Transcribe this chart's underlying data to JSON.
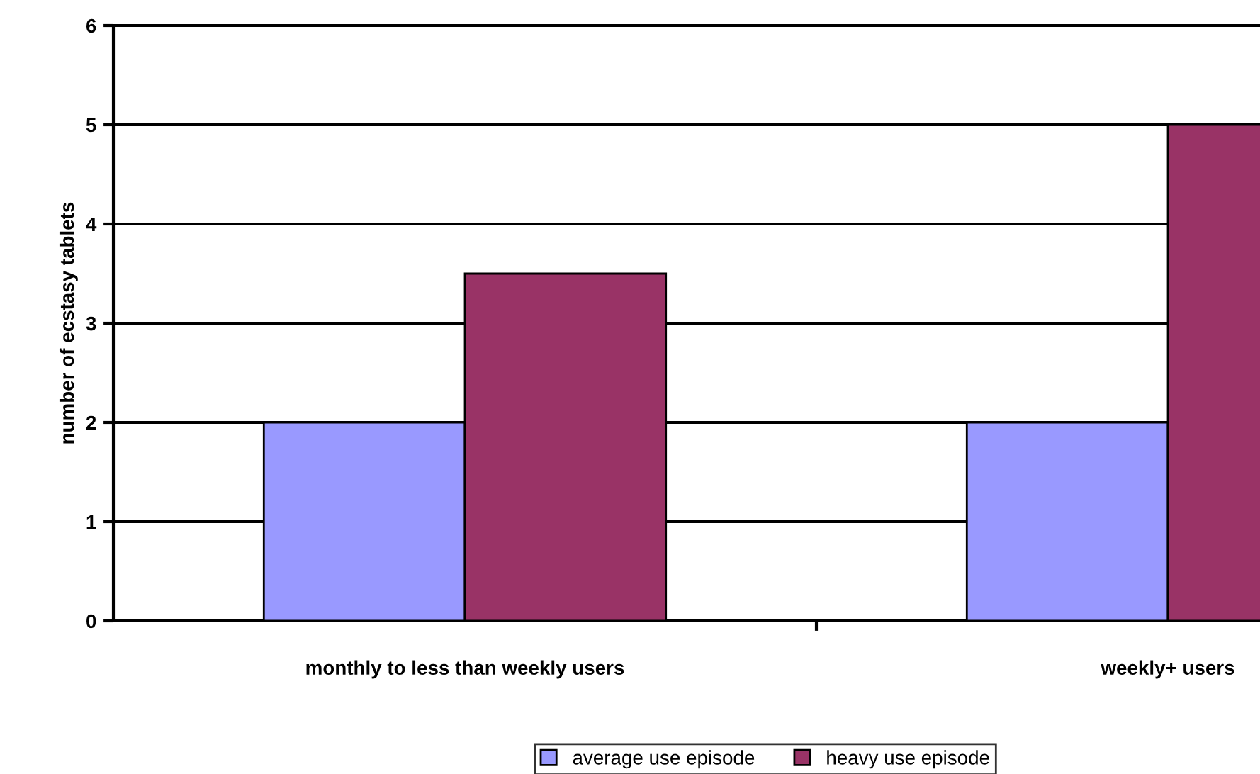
{
  "chart_data": {
    "type": "bar",
    "ylabel": "number of ecstasy tablets",
    "categories": [
      "monthly to less than weekly users",
      "weekly+ users"
    ],
    "series": [
      {
        "name": "average use episode",
        "color": "#9999ff",
        "values": [
          2,
          2
        ]
      },
      {
        "name": "heavy use episode",
        "color": "#993366",
        "values": [
          3.5,
          5
        ]
      }
    ],
    "ylim": [
      0,
      6
    ],
    "yticks": [
      0,
      1,
      2,
      3,
      4,
      5,
      6
    ],
    "grid": "y",
    "legend": "bottom"
  }
}
